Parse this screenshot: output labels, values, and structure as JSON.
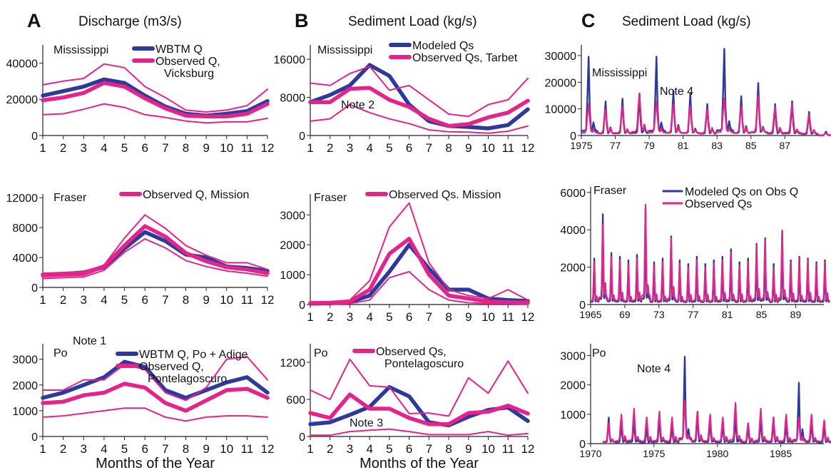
{
  "colors": {
    "modeled": "#2b3a9b",
    "observed": "#e4248a"
  },
  "column_titles": [
    {
      "letter": "A",
      "title": "Discharge (m3/s)"
    },
    {
      "letter": "B",
      "title": "Sediment Load (kg/s)"
    },
    {
      "letter": "C",
      "title": "Sediment Load (kg/s)"
    }
  ],
  "chart_data": [
    {
      "type": "line",
      "river": "Mississippi",
      "x": [
        1,
        2,
        3,
        4,
        5,
        6,
        7,
        8,
        9,
        10,
        11,
        12
      ],
      "xticks": [
        "1",
        "2",
        "3",
        "4",
        "5",
        "6",
        "7",
        "8",
        "9",
        "10",
        "11",
        "12"
      ],
      "ylim": [
        0,
        50000
      ],
      "yticks": [
        "0",
        "20000",
        "40000"
      ],
      "legend": [
        "WBTM Q",
        "Observed Q,",
        "Vicksburg"
      ],
      "series": [
        {
          "name": "WBTM Q",
          "role": "modeled",
          "values": [
            22000,
            24500,
            27000,
            31000,
            29000,
            22000,
            16000,
            12000,
            11000,
            12000,
            13500,
            19000
          ]
        },
        {
          "name": "Observed Q, Vicksburg",
          "role": "observed",
          "values": [
            19500,
            21000,
            23500,
            29000,
            27000,
            20500,
            15000,
            11000,
            10500,
            10500,
            12000,
            17500
          ]
        },
        {
          "role": "observed-bound",
          "values": [
            28000,
            30000,
            31500,
            39500,
            37500,
            27000,
            21000,
            14000,
            13000,
            14000,
            16500,
            25500
          ]
        },
        {
          "role": "observed-bound",
          "values": [
            11500,
            12000,
            14500,
            17500,
            15500,
            11500,
            10000,
            8000,
            7000,
            7500,
            7500,
            9500
          ]
        }
      ]
    },
    {
      "type": "line",
      "river": "Mississippi",
      "x": [
        1,
        2,
        3,
        4,
        5,
        6,
        7,
        8,
        9,
        10,
        11,
        12
      ],
      "xticks": [
        "1",
        "2",
        "3",
        "4",
        "5",
        "6",
        "7",
        "8",
        "9",
        "10",
        "11",
        "12"
      ],
      "ylim": [
        0,
        19000
      ],
      "yticks": [
        "0",
        "8000",
        "16000"
      ],
      "legend": [
        "Modeled Qs",
        "Observed Qs, Tarbet"
      ],
      "annotations": [
        "Note 2"
      ],
      "series": [
        {
          "name": "Modeled Qs",
          "role": "modeled",
          "values": [
            7000,
            8500,
            10500,
            14800,
            12500,
            6500,
            3000,
            2000,
            1800,
            1500,
            2200,
            5500
          ]
        },
        {
          "name": "Observed Qs, Tarbet",
          "role": "observed",
          "values": [
            7000,
            7000,
            9800,
            10000,
            7500,
            6000,
            3500,
            2000,
            2400,
            3800,
            4800,
            7300
          ]
        },
        {
          "role": "observed-bound",
          "values": [
            11000,
            10500,
            13000,
            14500,
            9500,
            10500,
            7500,
            4500,
            4000,
            6500,
            7500,
            12000
          ]
        },
        {
          "role": "observed-bound",
          "values": [
            3000,
            3500,
            6500,
            4800,
            3500,
            2500,
            1200,
            800,
            700,
            500,
            900,
            2000
          ]
        }
      ]
    },
    {
      "type": "line",
      "river": "Mississippi",
      "x": [
        1975,
        1976,
        1977,
        1978,
        1979,
        1980,
        1981,
        1982,
        1983,
        1984,
        1985,
        1986,
        1987,
        1988,
        1989
      ],
      "xticks": [
        "1975",
        "77",
        "79",
        "81",
        "83",
        "85",
        "87"
      ],
      "xtick_values": [
        1975,
        1977,
        1979,
        1981,
        1983,
        1985,
        1987
      ],
      "xlim": [
        1975,
        1989.3
      ],
      "ylim": [
        0,
        34000
      ],
      "yticks": [
        "0",
        "10000",
        "20000",
        "30000"
      ],
      "annotations": [
        "Note 4"
      ],
      "series": [
        {
          "name": "Modeled Qs",
          "role": "modeled",
          "peaks": [
            30000,
            13000,
            14000,
            16000,
            30000,
            17000,
            16000,
            12000,
            33000,
            15000,
            20000,
            12000,
            13000,
            9000,
            1500
          ]
        },
        {
          "name": "Observed Qs",
          "role": "observed",
          "peaks": [
            12000,
            10000,
            11000,
            16000,
            13000,
            12000,
            11000,
            10000,
            14000,
            11000,
            15000,
            11000,
            12000,
            8000,
            1000
          ]
        }
      ]
    },
    {
      "type": "line",
      "river": "Fraser",
      "x": [
        1,
        2,
        3,
        4,
        5,
        6,
        7,
        8,
        9,
        10,
        11,
        12
      ],
      "xticks": [
        "1",
        "2",
        "3",
        "4",
        "5",
        "6",
        "7",
        "8",
        "9",
        "10",
        "11",
        "12"
      ],
      "ylim": [
        0,
        12500
      ],
      "yticks": [
        "0",
        "4000",
        "8000",
        "12000"
      ],
      "legend": [
        "Observed Q, Mission"
      ],
      "series": [
        {
          "name": "WBTM Q",
          "role": "modeled",
          "values": [
            1700,
            1800,
            2000,
            2700,
            5200,
            7400,
            6200,
            4400,
            4000,
            2800,
            2600,
            2200
          ]
        },
        {
          "name": "Observed Q, Mission",
          "role": "observed",
          "values": [
            1600,
            1700,
            1800,
            2800,
            5600,
            8200,
            6800,
            4600,
            3500,
            2700,
            2400,
            1900
          ]
        },
        {
          "role": "observed-bound",
          "values": [
            1900,
            2000,
            2100,
            3000,
            6600,
            9700,
            7900,
            5600,
            4300,
            3300,
            3300,
            2400
          ]
        },
        {
          "role": "observed-bound",
          "values": [
            1200,
            1300,
            1400,
            2300,
            4700,
            6500,
            5300,
            3600,
            2800,
            2200,
            1900,
            1500
          ]
        }
      ]
    },
    {
      "type": "line",
      "river": "Fraser",
      "x": [
        1,
        2,
        3,
        4,
        5,
        6,
        7,
        8,
        9,
        10,
        11,
        12
      ],
      "xticks": [
        "1",
        "2",
        "3",
        "4",
        "5",
        "6",
        "7",
        "8",
        "9",
        "10",
        "11",
        "12"
      ],
      "ylim": [
        0,
        3700
      ],
      "yticks": [
        "0",
        "1000",
        "2000",
        "3000"
      ],
      "legend": [
        "Observed Qs. Mission"
      ],
      "series": [
        {
          "name": "Modeled Qs",
          "role": "modeled",
          "values": [
            30,
            40,
            80,
            300,
            1100,
            2000,
            1200,
            500,
            500,
            200,
            150,
            120
          ]
        },
        {
          "name": "Observed Qs. Mission",
          "role": "observed",
          "values": [
            50,
            60,
            100,
            500,
            1700,
            2200,
            1000,
            300,
            200,
            100,
            80,
            60
          ]
        },
        {
          "role": "observed-bound",
          "values": [
            80,
            90,
            150,
            800,
            2600,
            3400,
            1400,
            500,
            300,
            200,
            500,
            150
          ]
        },
        {
          "role": "observed-bound",
          "values": [
            10,
            15,
            30,
            150,
            900,
            1100,
            500,
            150,
            60,
            30,
            30,
            20
          ]
        }
      ]
    },
    {
      "type": "line",
      "river": "Fraser",
      "x": [
        1965,
        1966,
        1967,
        1968,
        1969,
        1970,
        1971,
        1972,
        1973,
        1974,
        1975,
        1976,
        1977,
        1978,
        1979,
        1980,
        1981,
        1982,
        1983,
        1984,
        1985,
        1986,
        1987,
        1988,
        1989,
        1990,
        1991,
        1992
      ],
      "xticks": [
        "1965",
        "69",
        "73",
        "77",
        "81",
        "85",
        "89"
      ],
      "xtick_values": [
        1965,
        1969,
        1973,
        1977,
        1981,
        1985,
        1989
      ],
      "xlim": [
        1965,
        1992.3
      ],
      "ylim": [
        0,
        6300
      ],
      "yticks": [
        "0",
        "2000",
        "4000",
        "6000"
      ],
      "legend": [
        "Modeled Qs on Obs Q",
        "Observed Qs"
      ],
      "series": [
        {
          "name": "Modeled Qs on Obs Q",
          "role": "modeled",
          "peaks": [
            2500,
            4900,
            2800,
            2600,
            2400,
            2700,
            5200,
            2300,
            2500,
            3700,
            2400,
            2200,
            2600,
            2200,
            2400,
            2600,
            3000,
            2300,
            2500,
            3300,
            3600,
            2200,
            4000,
            2400,
            2600,
            2500,
            2300,
            2400
          ]
        },
        {
          "name": "Observed Qs",
          "role": "observed",
          "peaks": [
            2300,
            4300,
            2600,
            2400,
            2200,
            2500,
            5400,
            2100,
            2300,
            3600,
            2200,
            2000,
            2400,
            2000,
            2200,
            2400,
            2800,
            2100,
            2300,
            3200,
            3500,
            2000,
            4000,
            2300,
            2500,
            2400,
            2200,
            2300
          ]
        }
      ]
    },
    {
      "type": "line",
      "river": "Po",
      "x": [
        1,
        2,
        3,
        4,
        5,
        6,
        7,
        8,
        9,
        10,
        11,
        12
      ],
      "xticks": [
        "1",
        "2",
        "3",
        "4",
        "5",
        "6",
        "7",
        "8",
        "9",
        "10",
        "11",
        "12"
      ],
      "xlabel": "Months of the Year",
      "ylim": [
        0,
        3600
      ],
      "yticks": [
        "0",
        "1000",
        "2000",
        "3000"
      ],
      "legend": [
        "WBTM Q, Po + Adige",
        "Observed Q,",
        "Pontelagoscuro"
      ],
      "annotations": [
        "Note 1"
      ],
      "series": [
        {
          "name": "WBTM Q, Po + Adige",
          "role": "modeled",
          "values": [
            1500,
            1700,
            2000,
            2300,
            2900,
            2700,
            1800,
            1500,
            1800,
            2100,
            2300,
            1700
          ]
        },
        {
          "name": "Observed Q, Pontelagoscuro",
          "role": "observed",
          "values": [
            1300,
            1350,
            1600,
            1700,
            2050,
            1900,
            1300,
            1000,
            1400,
            1800,
            1850,
            1500
          ]
        },
        {
          "role": "observed-bound",
          "values": [
            1800,
            1800,
            2200,
            2200,
            2800,
            2600,
            1700,
            1400,
            1900,
            3000,
            3100,
            2200
          ]
        },
        {
          "role": "observed-bound",
          "values": [
            750,
            800,
            900,
            1000,
            1100,
            1100,
            750,
            600,
            750,
            800,
            800,
            750
          ]
        }
      ]
    },
    {
      "type": "line",
      "river": "Po",
      "x": [
        1,
        2,
        3,
        4,
        5,
        6,
        7,
        8,
        9,
        10,
        11,
        12
      ],
      "xticks": [
        "1",
        "2",
        "3",
        "4",
        "5",
        "6",
        "7",
        "8",
        "9",
        "10",
        "11",
        "12"
      ],
      "xlabel": "Months of the Year",
      "ylim": [
        0,
        1500
      ],
      "yticks": [
        "0",
        "600",
        "1200"
      ],
      "legend": [
        "Observed Qs,",
        "Pontelagoscuro"
      ],
      "annotations": [
        "Note 3"
      ],
      "series": [
        {
          "name": "Modeled Qs",
          "role": "modeled",
          "values": [
            200,
            230,
            350,
            480,
            800,
            650,
            230,
            180,
            320,
            430,
            470,
            250
          ]
        },
        {
          "name": "Observed Qs, Pontelagoscuro",
          "role": "observed",
          "values": [
            380,
            300,
            680,
            450,
            450,
            300,
            200,
            200,
            380,
            400,
            500,
            370
          ]
        },
        {
          "role": "observed-bound",
          "values": [
            750,
            600,
            1250,
            820,
            800,
            370,
            380,
            330,
            950,
            700,
            1220,
            700
          ]
        },
        {
          "role": "observed-bound",
          "values": [
            20,
            20,
            80,
            100,
            120,
            80,
            30,
            30,
            30,
            80,
            20,
            50
          ]
        }
      ]
    },
    {
      "type": "line",
      "river": "Po",
      "x": [
        1971,
        1972,
        1973,
        1974,
        1975,
        1976,
        1977,
        1978,
        1979,
        1980,
        1981,
        1982,
        1983,
        1984,
        1985,
        1986,
        1987,
        1988
      ],
      "xticks": [
        "1970",
        "1975",
        "1980",
        "1985"
      ],
      "xtick_values": [
        1970,
        1975,
        1980,
        1985
      ],
      "xlim": [
        1970,
        1988.4
      ],
      "ylim": [
        0,
        3400
      ],
      "yticks": [
        "0",
        "1000",
        "2000",
        "3000"
      ],
      "annotations": [
        "Note 4"
      ],
      "series": [
        {
          "name": "Modeled Qs",
          "role": "modeled",
          "peaks": [
            900,
            800,
            950,
            600,
            1000,
            700,
            3000,
            1100,
            900,
            800,
            1000,
            700,
            1000,
            900,
            800,
            2100,
            900,
            700
          ]
        },
        {
          "name": "Observed Qs",
          "role": "observed",
          "peaks": [
            700,
            1000,
            1200,
            900,
            1100,
            900,
            1500,
            1100,
            1000,
            900,
            1400,
            700,
            1200,
            900,
            1000,
            900,
            1000,
            800
          ]
        }
      ]
    }
  ]
}
